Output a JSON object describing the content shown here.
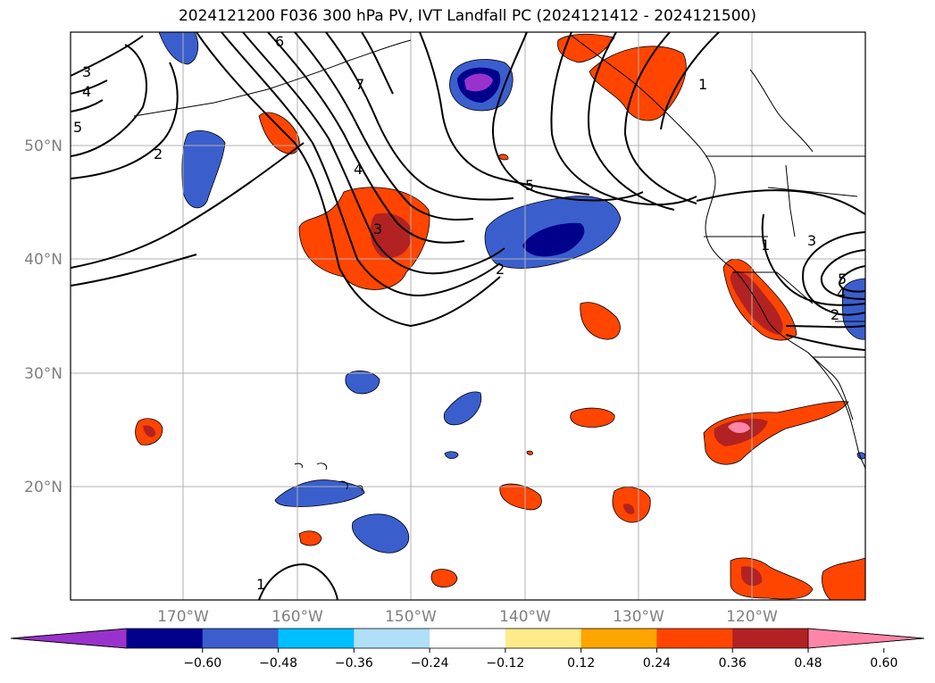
{
  "title": "2024121200 F036 300 hPa PV, IVT Landfall PC (2024121412 - 2024121500)",
  "lat_labels": [
    "50°N",
    "40°N",
    "30°N",
    "20°N"
  ],
  "lon_labels": [
    "170°W",
    "160°W",
    "150°W",
    "140°W",
    "130°W",
    "120°W"
  ],
  "colorbar": {
    "colors": [
      "#9932cc",
      "#00008b",
      "#3a5fcd",
      "#00bfff",
      "#afe0f8",
      "#ffffff",
      "#ffeb8a",
      "#ffa500",
      "#ff4500",
      "#b22222",
      "#ff85a8"
    ],
    "tick_labels": [
      "−0.60",
      "−0.48",
      "−0.36",
      "−0.24",
      "−0.12",
      "0.12",
      "0.24",
      "0.36",
      "0.48",
      "0.60"
    ]
  },
  "contour_labels": [
    "3",
    "4",
    "5",
    "2",
    "6",
    "7",
    "4",
    "3",
    "5",
    "2",
    "1",
    "1",
    "3",
    "5",
    "4",
    "2",
    "1"
  ]
}
